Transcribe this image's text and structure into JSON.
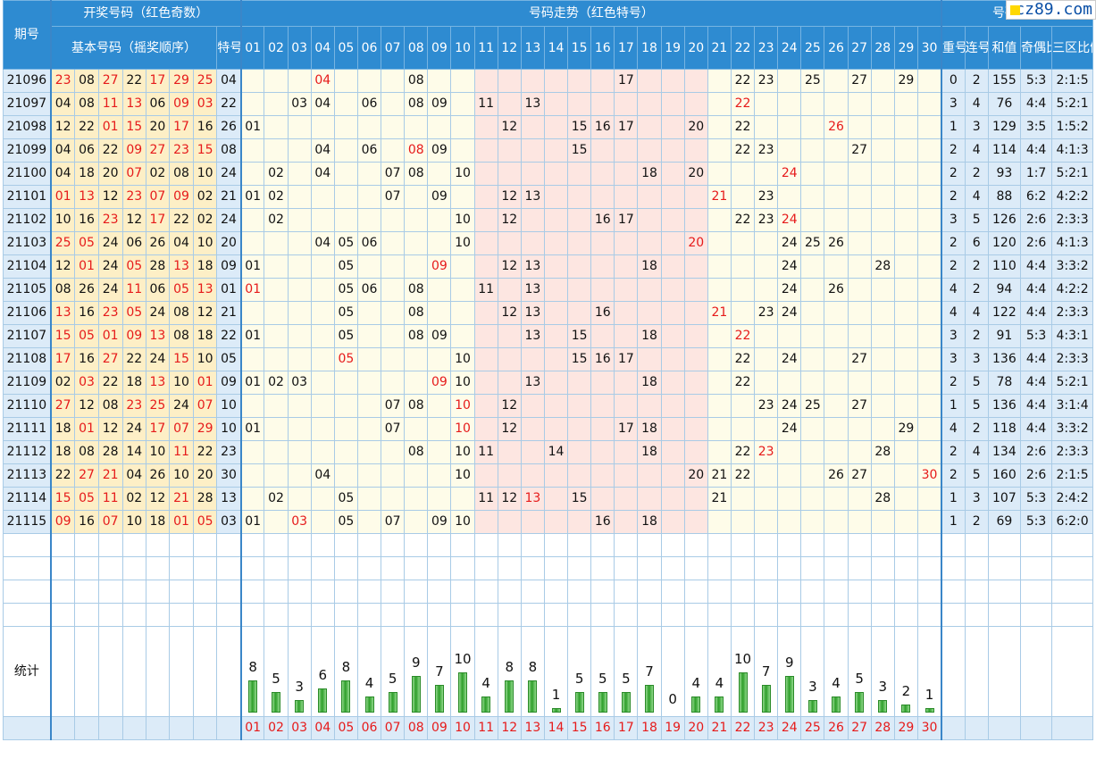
{
  "header": {
    "issue": "期号",
    "draw_group": "开奖号码（红色奇数）",
    "base_group": "基本号码（摇奖顺序）",
    "special": "特号",
    "trend_group": "号码走势（红色特号）",
    "analysis_group": "号码分析",
    "repeat": "重号",
    "consec": "连号",
    "sum": "和值",
    "odd_even": "奇偶比例",
    "three_zone": "三区比例"
  },
  "logo": "cz89.com",
  "colors": {
    "header_bg": "#2e8bd1",
    "red": "#e61b1b",
    "base_bg": "#fdefc6",
    "zone_mid_bg": "#fde6e1",
    "zone_side_bg": "#fefce9",
    "bar": "#2e9e2a"
  },
  "rows": [
    {
      "issue": "21096",
      "base": [
        "23",
        "08",
        "27",
        "22",
        "17",
        "29",
        "25"
      ],
      "special": "04",
      "trend": [
        "04",
        "08",
        "17",
        "22",
        "23",
        "25",
        "27",
        "29"
      ],
      "repeat": "0",
      "consec": "2",
      "sum": "155",
      "odd_even": "5:3",
      "three_zone": "2:1:5"
    },
    {
      "issue": "21097",
      "base": [
        "04",
        "08",
        "11",
        "13",
        "06",
        "09",
        "03"
      ],
      "special": "22",
      "trend": [
        "03",
        "04",
        "06",
        "08",
        "09",
        "11",
        "13",
        "22"
      ],
      "repeat": "3",
      "consec": "4",
      "sum": "76",
      "odd_even": "4:4",
      "three_zone": "5:2:1"
    },
    {
      "issue": "21098",
      "base": [
        "12",
        "22",
        "01",
        "15",
        "20",
        "17",
        "16"
      ],
      "special": "26",
      "trend": [
        "01",
        "12",
        "15",
        "16",
        "17",
        "20",
        "22",
        "26"
      ],
      "repeat": "1",
      "consec": "3",
      "sum": "129",
      "odd_even": "3:5",
      "three_zone": "1:5:2"
    },
    {
      "issue": "21099",
      "base": [
        "04",
        "06",
        "22",
        "09",
        "27",
        "23",
        "15"
      ],
      "special": "08",
      "trend": [
        "04",
        "06",
        "08",
        "09",
        "15",
        "22",
        "23",
        "27"
      ],
      "repeat": "2",
      "consec": "4",
      "sum": "114",
      "odd_even": "4:4",
      "three_zone": "4:1:3"
    },
    {
      "issue": "21100",
      "base": [
        "04",
        "18",
        "20",
        "07",
        "02",
        "08",
        "10"
      ],
      "special": "24",
      "trend": [
        "02",
        "04",
        "07",
        "08",
        "10",
        "18",
        "20",
        "24"
      ],
      "repeat": "2",
      "consec": "2",
      "sum": "93",
      "odd_even": "1:7",
      "three_zone": "5:2:1"
    },
    {
      "issue": "21101",
      "base": [
        "01",
        "13",
        "12",
        "23",
        "07",
        "09",
        "02"
      ],
      "special": "21",
      "trend": [
        "01",
        "02",
        "07",
        "09",
        "12",
        "13",
        "21",
        "23"
      ],
      "repeat": "2",
      "consec": "4",
      "sum": "88",
      "odd_even": "6:2",
      "three_zone": "4:2:2"
    },
    {
      "issue": "21102",
      "base": [
        "10",
        "16",
        "23",
        "12",
        "17",
        "22",
        "02"
      ],
      "special": "24",
      "trend": [
        "02",
        "10",
        "12",
        "16",
        "17",
        "22",
        "23",
        "24"
      ],
      "repeat": "3",
      "consec": "5",
      "sum": "126",
      "odd_even": "2:6",
      "three_zone": "2:3:3"
    },
    {
      "issue": "21103",
      "base": [
        "25",
        "05",
        "24",
        "06",
        "26",
        "04",
        "10"
      ],
      "special": "20",
      "trend": [
        "04",
        "05",
        "06",
        "10",
        "20",
        "24",
        "25",
        "26"
      ],
      "repeat": "2",
      "consec": "6",
      "sum": "120",
      "odd_even": "2:6",
      "three_zone": "4:1:3"
    },
    {
      "issue": "21104",
      "base": [
        "12",
        "01",
        "24",
        "05",
        "28",
        "13",
        "18"
      ],
      "special": "09",
      "trend": [
        "01",
        "05",
        "09",
        "12",
        "13",
        "18",
        "24",
        "28"
      ],
      "repeat": "2",
      "consec": "2",
      "sum": "110",
      "odd_even": "4:4",
      "three_zone": "3:3:2"
    },
    {
      "issue": "21105",
      "base": [
        "08",
        "26",
        "24",
        "11",
        "06",
        "05",
        "13"
      ],
      "special": "01",
      "trend": [
        "01",
        "05",
        "06",
        "08",
        "11",
        "13",
        "24",
        "26"
      ],
      "repeat": "4",
      "consec": "2",
      "sum": "94",
      "odd_even": "4:4",
      "three_zone": "4:2:2"
    },
    {
      "issue": "21106",
      "base": [
        "13",
        "16",
        "23",
        "05",
        "24",
        "08",
        "12"
      ],
      "special": "21",
      "trend": [
        "05",
        "08",
        "12",
        "13",
        "16",
        "21",
        "23",
        "24"
      ],
      "repeat": "4",
      "consec": "4",
      "sum": "122",
      "odd_even": "4:4",
      "three_zone": "2:3:3"
    },
    {
      "issue": "21107",
      "base": [
        "15",
        "05",
        "01",
        "09",
        "13",
        "08",
        "18"
      ],
      "special": "22",
      "trend": [
        "01",
        "05",
        "08",
        "09",
        "13",
        "15",
        "18",
        "22"
      ],
      "repeat": "3",
      "consec": "2",
      "sum": "91",
      "odd_even": "5:3",
      "three_zone": "4:3:1"
    },
    {
      "issue": "21108",
      "base": [
        "17",
        "16",
        "27",
        "22",
        "24",
        "15",
        "10"
      ],
      "special": "05",
      "trend": [
        "05",
        "10",
        "15",
        "16",
        "17",
        "22",
        "24",
        "27"
      ],
      "repeat": "3",
      "consec": "3",
      "sum": "136",
      "odd_even": "4:4",
      "three_zone": "2:3:3"
    },
    {
      "issue": "21109",
      "base": [
        "02",
        "03",
        "22",
        "18",
        "13",
        "10",
        "01"
      ],
      "special": "09",
      "trend": [
        "01",
        "02",
        "03",
        "09",
        "10",
        "13",
        "18",
        "22"
      ],
      "repeat": "2",
      "consec": "5",
      "sum": "78",
      "odd_even": "4:4",
      "three_zone": "5:2:1"
    },
    {
      "issue": "21110",
      "base": [
        "27",
        "12",
        "08",
        "23",
        "25",
        "24",
        "07"
      ],
      "special": "10",
      "trend": [
        "07",
        "08",
        "10",
        "12",
        "23",
        "24",
        "25",
        "27"
      ],
      "repeat": "1",
      "consec": "5",
      "sum": "136",
      "odd_even": "4:4",
      "three_zone": "3:1:4"
    },
    {
      "issue": "21111",
      "base": [
        "18",
        "01",
        "12",
        "24",
        "17",
        "07",
        "29"
      ],
      "special": "10",
      "trend": [
        "01",
        "07",
        "10",
        "12",
        "17",
        "18",
        "24",
        "29"
      ],
      "repeat": "4",
      "consec": "2",
      "sum": "118",
      "odd_even": "4:4",
      "three_zone": "3:3:2"
    },
    {
      "issue": "21112",
      "base": [
        "18",
        "08",
        "28",
        "14",
        "10",
        "11",
        "22"
      ],
      "special": "23",
      "trend": [
        "08",
        "10",
        "11",
        "14",
        "18",
        "22",
        "23",
        "28"
      ],
      "repeat": "2",
      "consec": "4",
      "sum": "134",
      "odd_even": "2:6",
      "three_zone": "2:3:3"
    },
    {
      "issue": "21113",
      "base": [
        "22",
        "27",
        "21",
        "04",
        "26",
        "10",
        "20"
      ],
      "special": "30",
      "trend": [
        "04",
        "10",
        "20",
        "21",
        "22",
        "26",
        "27",
        "30"
      ],
      "repeat": "2",
      "consec": "5",
      "sum": "160",
      "odd_even": "2:6",
      "three_zone": "2:1:5"
    },
    {
      "issue": "21114",
      "base": [
        "15",
        "05",
        "11",
        "02",
        "12",
        "21",
        "28"
      ],
      "special": "13",
      "trend": [
        "02",
        "05",
        "11",
        "12",
        "13",
        "15",
        "21",
        "28"
      ],
      "repeat": "1",
      "consec": "3",
      "sum": "107",
      "odd_even": "5:3",
      "three_zone": "2:4:2"
    },
    {
      "issue": "21115",
      "base": [
        "09",
        "16",
        "07",
        "10",
        "18",
        "01",
        "05"
      ],
      "special": "03",
      "trend": [
        "01",
        "03",
        "05",
        "07",
        "09",
        "10",
        "16",
        "18"
      ],
      "repeat": "1",
      "consec": "2",
      "sum": "69",
      "odd_even": "5:3",
      "three_zone": "6:2:0"
    }
  ],
  "stats_label": "统计",
  "chart_data": {
    "type": "bar",
    "categories": [
      "01",
      "02",
      "03",
      "04",
      "05",
      "06",
      "07",
      "08",
      "09",
      "10",
      "11",
      "12",
      "13",
      "14",
      "15",
      "16",
      "17",
      "18",
      "19",
      "20",
      "21",
      "22",
      "23",
      "24",
      "25",
      "26",
      "27",
      "28",
      "29",
      "30"
    ],
    "values": [
      8,
      5,
      3,
      6,
      8,
      4,
      5,
      9,
      7,
      10,
      4,
      8,
      8,
      1,
      5,
      5,
      5,
      7,
      0,
      4,
      4,
      10,
      7,
      9,
      3,
      4,
      5,
      3,
      2,
      1
    ],
    "ylim": [
      0,
      10
    ]
  }
}
